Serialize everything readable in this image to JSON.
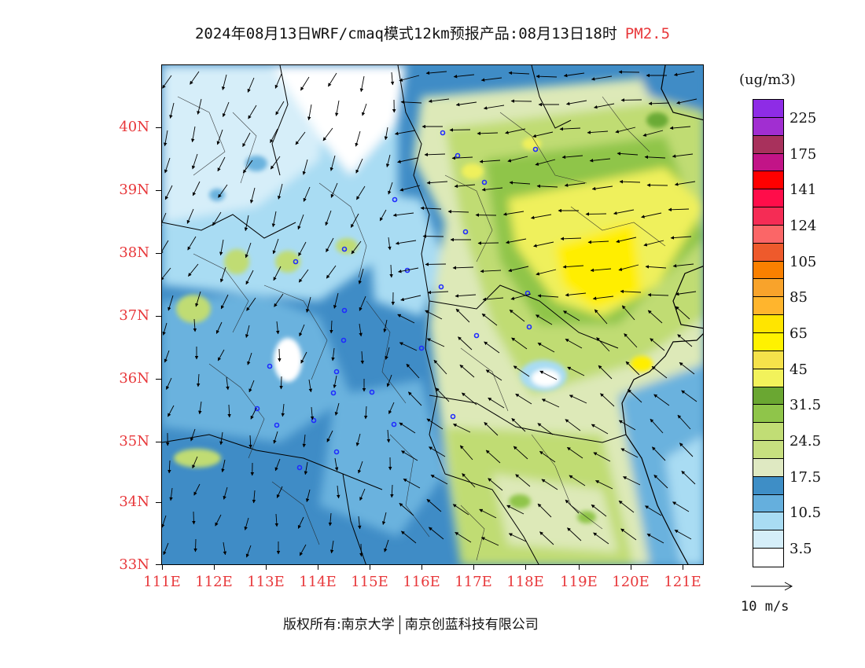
{
  "header": {
    "title": "2024年08月13日WRF/cmaq模式12km预报产品:08月13日18时",
    "pollutant": "PM2.5"
  },
  "map": {
    "latitudes": [
      "40N",
      "39N",
      "38N",
      "37N",
      "36N",
      "35N",
      "34N",
      "33N"
    ],
    "longitudes": [
      "111E",
      "112E",
      "113E",
      "114E",
      "115E",
      "116E",
      "117E",
      "118E",
      "119E",
      "120E",
      "121E"
    ],
    "extent": {
      "lon_min": 111,
      "lon_max": 121.4,
      "lat_min": 33,
      "lat_max": 41
    },
    "field_colors": {
      "white": "#ffffff",
      "pale_blue": "#d6eef9",
      "light_blue": "#a9dcf3",
      "mid_blue": "#6bb2de",
      "dark_blue": "#3f8cc6",
      "pale_green": "#dde9b8",
      "light_green": "#c0dc73",
      "green": "#8fc54a",
      "dark_green": "#6aaa36",
      "yellow_green": "#eff05c",
      "yellow": "#ffee00"
    }
  },
  "legend": {
    "unit": "(ug/m3)",
    "colors": [
      "#8e2ce6",
      "#a12ed1",
      "#a8315c",
      "#c21487",
      "#ff0000",
      "#ff0d4a",
      "#f52c55",
      "#fb6667",
      "#ee5a2c",
      "#fa8000",
      "#f8a32b",
      "#ffb52d",
      "#ffe500",
      "#fff200",
      "#f5e24a",
      "#f2f25b",
      "#6aa732",
      "#8fc54a",
      "#c1dd75",
      "#c7df7f",
      "#dfe9c2",
      "#3e8ec6",
      "#65afdd",
      "#a9dcf3",
      "#d5eef9",
      "#ffffff"
    ],
    "labels": [
      "225",
      "175",
      "141",
      "124",
      "105",
      "85",
      "65",
      "45",
      "31.5",
      "24.5",
      "17.5",
      "10.5",
      "3.5"
    ]
  },
  "wind_scale": {
    "label": "10 m/s"
  },
  "footer": {
    "copyright": "版权所有:南京大学",
    "company": "南京创蓝科技有限公司"
  }
}
